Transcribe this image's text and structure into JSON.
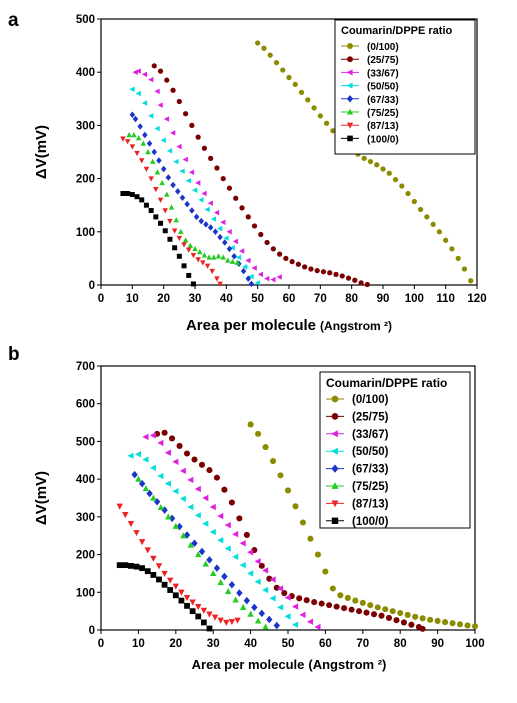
{
  "chart_data": [
    {
      "type": "scatter",
      "panel_label": "a",
      "xlabel": "Area per molecule",
      "xlabel_unit": "(Angstrom ²)",
      "ylabel": "ΔV(mV)",
      "xlim": [
        0,
        120
      ],
      "ylim": [
        0,
        500
      ],
      "x_ticks": [
        0,
        10,
        20,
        30,
        40,
        50,
        60,
        70,
        80,
        90,
        100,
        110,
        120
      ],
      "y_ticks": [
        0,
        100,
        200,
        300,
        400,
        500
      ],
      "grid": false,
      "legend_position": "top-right",
      "legend_title": "Coumarin/DPPE ratio",
      "series": [
        {
          "name": "(0/100)",
          "marker": "circle",
          "color": "#8b8b00",
          "x": [
            50,
            52,
            54,
            56,
            58,
            60,
            62,
            64,
            66,
            68,
            70,
            72,
            74,
            76,
            78,
            80,
            82,
            84,
            86,
            88,
            90,
            92,
            94,
            96,
            98,
            100,
            102,
            104,
            106,
            108,
            110,
            112,
            114,
            116,
            118
          ],
          "y": [
            455,
            445,
            432,
            418,
            404,
            390,
            377,
            362,
            348,
            333,
            318,
            304,
            290,
            277,
            265,
            255,
            246,
            238,
            232,
            226,
            218,
            210,
            198,
            186,
            172,
            157,
            142,
            128,
            114,
            100,
            84,
            68,
            50,
            30,
            8
          ]
        },
        {
          "name": "(25/75)",
          "marker": "circle",
          "color": "#7a0000",
          "x": [
            17,
            19,
            21,
            23,
            25,
            27,
            29,
            31,
            33,
            35,
            37,
            39,
            41,
            43,
            45,
            47,
            49,
            51,
            53,
            55,
            57,
            59,
            61,
            63,
            65,
            67,
            69,
            71,
            73,
            75,
            77,
            79,
            81,
            83,
            85
          ],
          "y": [
            412,
            402,
            385,
            366,
            345,
            322,
            300,
            278,
            257,
            238,
            220,
            200,
            182,
            163,
            145,
            128,
            111,
            95,
            80,
            68,
            58,
            50,
            44,
            39,
            34,
            30,
            27,
            25,
            23,
            20,
            17,
            13,
            9,
            4,
            1
          ]
        },
        {
          "name": "(33/67)",
          "marker": "triangle-left",
          "color": "#e020e0",
          "x": [
            11,
            12,
            14,
            16,
            18,
            19,
            21,
            23,
            25,
            27,
            29,
            31,
            33,
            35,
            37,
            39,
            41,
            43,
            45,
            47,
            49,
            51,
            53,
            55,
            57
          ],
          "y": [
            400,
            402,
            396,
            386,
            364,
            338,
            312,
            286,
            260,
            236,
            212,
            192,
            172,
            154,
            136,
            118,
            100,
            82,
            64,
            46,
            32,
            20,
            12,
            10,
            15
          ]
        },
        {
          "name": "(50/50)",
          "marker": "triangle-left",
          "color": "#00dede",
          "x": [
            10,
            12,
            14,
            16,
            18,
            20,
            22,
            24,
            26,
            28,
            30,
            32,
            34,
            36,
            38,
            40,
            42,
            44,
            46,
            48,
            50
          ],
          "y": [
            368,
            360,
            342,
            318,
            294,
            272,
            252,
            232,
            214,
            196,
            178,
            160,
            142,
            124,
            106,
            88,
            70,
            52,
            34,
            16,
            4
          ]
        },
        {
          "name": "(67/33)",
          "marker": "diamond",
          "color": "#1a35c8",
          "x": [
            10,
            11,
            12.5,
            14,
            15.5,
            17,
            18.5,
            20,
            21.5,
            23,
            24.5,
            26,
            27.5,
            29,
            30.5,
            32,
            33.5,
            35,
            36.5,
            38,
            39.5,
            41,
            42.5,
            44,
            45.5,
            47,
            48
          ],
          "y": [
            320,
            312,
            298,
            282,
            266,
            250,
            234,
            218,
            202,
            188,
            176,
            164,
            152,
            140,
            128,
            120,
            114,
            108,
            100,
            90,
            80,
            68,
            54,
            40,
            26,
            12,
            2
          ]
        },
        {
          "name": "(75/25)",
          "marker": "triangle-up",
          "color": "#22cc22",
          "x": [
            9,
            10.5,
            12,
            13.5,
            15,
            16.5,
            18,
            19.5,
            21,
            22.5,
            24,
            25.5,
            27,
            28.5,
            30,
            31.5,
            33,
            34.5,
            36,
            37.5,
            39,
            40.5,
            42,
            43.5
          ],
          "y": [
            282,
            282,
            276,
            266,
            250,
            232,
            212,
            192,
            170,
            146,
            122,
            100,
            84,
            74,
            68,
            62,
            56,
            52,
            52,
            54,
            52,
            46,
            44,
            42
          ]
        },
        {
          "name": "(87/13)",
          "marker": "triangle-down",
          "color": "#ee2222",
          "x": [
            7,
            8.5,
            10,
            11.5,
            13,
            14.5,
            16,
            17.5,
            19,
            20.5,
            22,
            23.5,
            25,
            26.5,
            28,
            29.5,
            31,
            32.5,
            34,
            35.5,
            37,
            38
          ],
          "y": [
            275,
            270,
            260,
            248,
            234,
            218,
            200,
            180,
            160,
            140,
            120,
            102,
            88,
            76,
            66,
            56,
            48,
            42,
            36,
            26,
            12,
            2
          ]
        },
        {
          "name": "(100/0)",
          "marker": "square",
          "color": "#000000",
          "x": [
            7,
            8.5,
            10,
            11.5,
            13,
            14.5,
            16,
            17.5,
            19,
            20.5,
            22,
            23.5,
            25,
            26.5,
            28,
            29.5
          ],
          "y": [
            172,
            172,
            170,
            166,
            160,
            150,
            140,
            128,
            116,
            102,
            86,
            70,
            54,
            36,
            18,
            2
          ]
        }
      ]
    },
    {
      "type": "scatter",
      "panel_label": "b",
      "xlabel": "Area per molecule",
      "xlabel_unit": "(Angstrom ²)",
      "ylabel": "ΔV(mV)",
      "xlim": [
        0,
        100
      ],
      "ylim": [
        0,
        700
      ],
      "x_ticks": [
        0,
        10,
        20,
        30,
        40,
        50,
        60,
        70,
        80,
        90,
        100
      ],
      "y_ticks": [
        0,
        100,
        200,
        300,
        400,
        500,
        600,
        700
      ],
      "grid": false,
      "legend_position": "top-right",
      "legend_title": "Coumarin/DPPE ratio",
      "series": [
        {
          "name": "(0/100)",
          "marker": "circle",
          "color": "#8b8b00",
          "x": [
            40,
            42,
            44,
            46,
            48,
            50,
            52,
            54,
            56,
            58,
            60,
            62,
            64,
            66,
            68,
            70,
            72,
            74,
            76,
            78,
            80,
            82,
            84,
            86,
            88,
            90,
            92,
            94,
            96,
            98,
            100
          ],
          "y": [
            545,
            520,
            485,
            448,
            410,
            370,
            328,
            285,
            242,
            200,
            155,
            110,
            92,
            85,
            78,
            72,
            66,
            60,
            55,
            50,
            45,
            40,
            35,
            31,
            27,
            24,
            21,
            18,
            15,
            12,
            10
          ]
        },
        {
          "name": "(25/75)",
          "marker": "circle",
          "color": "#7a0000",
          "x": [
            15,
            17,
            19,
            21,
            23,
            25,
            27,
            29,
            31,
            33,
            35,
            37,
            39,
            41,
            43,
            45,
            47,
            49,
            51,
            53,
            55,
            57,
            59,
            61,
            63,
            65,
            67,
            69,
            71,
            73,
            75,
            77,
            79,
            81,
            83,
            85,
            86
          ],
          "y": [
            520,
            523,
            508,
            488,
            468,
            452,
            438,
            424,
            404,
            372,
            338,
            296,
            252,
            212,
            170,
            136,
            112,
            98,
            90,
            84,
            79,
            74,
            70,
            66,
            62,
            58,
            54,
            50,
            46,
            42,
            38,
            32,
            26,
            20,
            14,
            8,
            3
          ]
        },
        {
          "name": "(33/67)",
          "marker": "triangle-left",
          "color": "#e020e0",
          "x": [
            12,
            14,
            16,
            18,
            20,
            22,
            24,
            26,
            28,
            30,
            32,
            34,
            36,
            38,
            40,
            42,
            44,
            46,
            48,
            50,
            52,
            54,
            56,
            58
          ],
          "y": [
            512,
            516,
            496,
            470,
            446,
            422,
            398,
            374,
            350,
            326,
            302,
            278,
            254,
            230,
            206,
            182,
            158,
            134,
            110,
            86,
            62,
            40,
            22,
            8
          ]
        },
        {
          "name": "(50/50)",
          "marker": "triangle-left",
          "color": "#00dede",
          "x": [
            8,
            10,
            12,
            14,
            16,
            18,
            20,
            22,
            24,
            26,
            28,
            30,
            32,
            34,
            36,
            38,
            40,
            42,
            44,
            46,
            48,
            50,
            52
          ],
          "y": [
            462,
            466,
            452,
            430,
            408,
            388,
            368,
            348,
            326,
            304,
            282,
            260,
            238,
            216,
            194,
            172,
            150,
            128,
            106,
            84,
            60,
            36,
            14
          ]
        },
        {
          "name": "(67/33)",
          "marker": "diamond",
          "color": "#1a35c8",
          "x": [
            9,
            11,
            13,
            15,
            17,
            19,
            21,
            23,
            25,
            27,
            29,
            31,
            33,
            35,
            37,
            39,
            41,
            43,
            45,
            47
          ],
          "y": [
            412,
            388,
            362,
            340,
            318,
            296,
            274,
            252,
            230,
            208,
            186,
            164,
            142,
            120,
            98,
            78,
            60,
            44,
            28,
            12
          ]
        },
        {
          "name": "(75/25)",
          "marker": "triangle-up",
          "color": "#22cc22",
          "x": [
            10,
            12,
            14,
            16,
            18,
            20,
            22,
            24,
            26,
            28,
            30,
            32,
            34,
            36,
            38,
            40,
            42,
            44
          ],
          "y": [
            400,
            375,
            350,
            325,
            300,
            275,
            250,
            225,
            200,
            175,
            150,
            126,
            102,
            80,
            60,
            42,
            24,
            8
          ]
        },
        {
          "name": "(87/13)",
          "marker": "triangle-down",
          "color": "#ee2222",
          "x": [
            5,
            6.5,
            8,
            9.5,
            11,
            12.5,
            14,
            15.5,
            17,
            18.5,
            20,
            21.5,
            23,
            24.5,
            26,
            27.5,
            29,
            30.5,
            32,
            33.5,
            35,
            36.5
          ],
          "y": [
            328,
            306,
            282,
            258,
            234,
            212,
            190,
            170,
            150,
            132,
            116,
            100,
            86,
            74,
            62,
            52,
            42,
            34,
            26,
            20,
            22,
            26
          ]
        },
        {
          "name": "(100/0)",
          "marker": "square",
          "color": "#000000",
          "x": [
            5,
            6.5,
            8,
            9.5,
            11,
            12.5,
            14,
            15.5,
            17,
            18.5,
            20,
            21.5,
            23,
            24.5,
            26,
            27.5,
            29
          ],
          "y": [
            172,
            172,
            170,
            168,
            164,
            156,
            146,
            134,
            120,
            106,
            92,
            78,
            64,
            50,
            36,
            20,
            4
          ]
        }
      ]
    }
  ]
}
